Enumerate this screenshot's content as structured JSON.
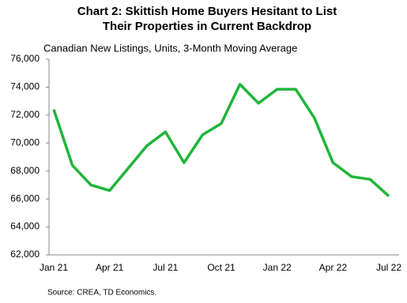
{
  "chart_data": {
    "type": "line",
    "title": "Chart 2: Skittish Home Buyers Hesitant to List",
    "title_line2": "Their Properties in Current Backdrop",
    "subtitle": "Canadian New Listings, Units, 3-Month Moving Average",
    "source": "Source: CREA,  TD Economics.",
    "categories": [
      "Jan 21",
      null,
      null,
      "Apr 21",
      null,
      null,
      "Jul 21",
      null,
      null,
      "Oct 21",
      null,
      null,
      "Jan 22",
      null,
      null,
      "Apr 22",
      null,
      null,
      "Jul 22"
    ],
    "series": [
      {
        "name": "Canadian New Listings",
        "color": "#1fb53a",
        "values": [
          72400,
          68400,
          67000,
          66600,
          68200,
          69800,
          70800,
          68600,
          70600,
          71400,
          74200,
          72850,
          73850,
          73850,
          71800,
          68600,
          67600,
          67400,
          66200
        ]
      }
    ],
    "ylim": [
      62000,
      76000
    ],
    "yticks": [
      {
        "value": 62000,
        "label": "62,000"
      },
      {
        "value": 64000,
        "label": "64,000"
      },
      {
        "value": 66000,
        "label": "66,000"
      },
      {
        "value": 68000,
        "label": "68,000"
      },
      {
        "value": 70000,
        "label": "70,000"
      },
      {
        "value": 72000,
        "label": "72,000"
      },
      {
        "value": 74000,
        "label": "74,000"
      },
      {
        "value": 76000,
        "label": "76,000"
      }
    ],
    "grid": false
  }
}
